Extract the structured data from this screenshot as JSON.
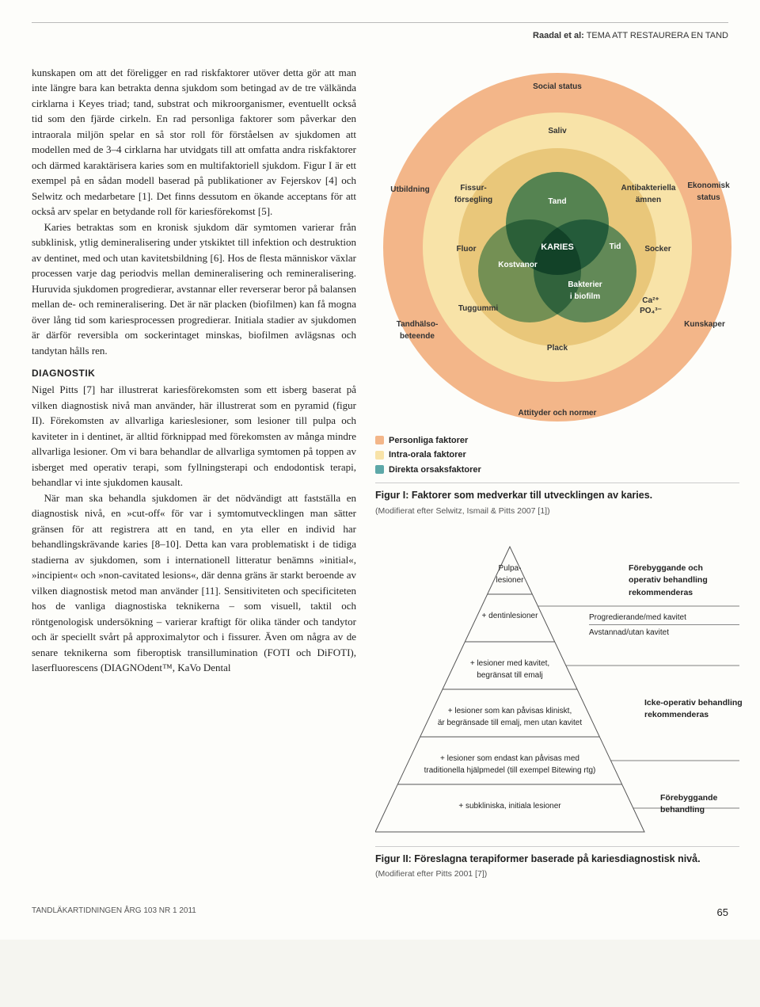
{
  "running_head": {
    "authors": "Raadal et al:",
    "title": "TEMA ATT RESTAURERA EN TAND"
  },
  "text": {
    "p1": "kunskapen om att det föreligger en rad riskfaktorer utöver detta gör att man inte längre bara kan betrakta denna sjukdom som betingad av de tre välkända cirklarna i Keyes triad; tand, substrat och mikroorganismer, eventuellt också tid som den fjärde cirkeln. En rad personliga faktorer som påverkar den intraorala miljön spelar en så stor roll för förståelsen av sjukdomen att modellen med de 3–4 cirklarna har utvidgats till att omfatta andra riskfaktorer och därmed karaktärisera karies som en multifaktoriell sjukdom. Figur I är ett exempel på en sådan modell baserad på publikationer av Fejerskov [4] och Selwitz och medarbetare [1]. Det finns dessutom en ökande acceptans för att också arv spelar en betydande roll för kariesförekomst [5].",
    "p2": "Karies betraktas som en kronisk sjukdom där symtomen varierar från subklinisk, ytlig demineralisering under ytskiktet till infektion och destruktion av dentinet, med och utan kavitetsbildning [6]. Hos de flesta människor växlar processen varje dag periodvis mellan demineralisering och remineralisering. Huruvida sjukdomen progredierar, avstannar eller reverserar beror på balansen mellan de- och remineralisering. Det är när placken (biofilmen) kan få mogna över lång tid som kariesprocessen progredierar. Initiala stadier av sjukdomen är därför reversibla om sockerintaget minskas, biofilmen avlägsnas och tandytan hålls ren.",
    "h1": "DIAGNOSTIK",
    "p3": "Nigel Pitts [7] har illustrerat kariesförekomsten som ett isberg baserat på vilken diagnostisk nivå man använder, här illustrerat som en pyramid (figur II). Förekomsten av allvarliga karieslesioner, som lesioner till pulpa och kaviteter in i dentinet, är alltid förknippad med förekomsten av många mindre allvarliga lesioner. Om vi bara behandlar de allvarliga symtomen på toppen av isberget med operativ terapi, som fyllningsterapi och endodontisk terapi, behandlar vi inte sjukdomen kausalt.",
    "p4": "När man ska behandla sjukdomen är det nödvändigt att fastställa en diagnostisk nivå, en »cut-off« för var i symtomutvecklingen man sätter gränsen för att registrera att en tand, en yta eller en individ har behandlingskrävande karies [8–10]. Detta kan vara problematiskt i de tidiga stadierna av sjukdomen, som i internationell litteratur benämns »initial«, »incipient« och »non-cavitated lesions«, där denna gräns är starkt beroende av vilken diagnostisk metod man använder [11]. Sensitiviteten och specificiteten hos de vanliga diagnostiska teknikerna – som visuell, taktil och röntgenologisk undersökning – varierar kraftigt för olika tänder och tandytor och är speciellt svårt på approximalytor och i fissurer. Även om några av de senare teknikerna som fiberoptisk transillumination (FOTI och DiFOTI), laserfluorescens (DIAGNOdent™, KaVo Dental"
  },
  "fig1": {
    "colors": {
      "outer": "#f3b689",
      "mid": "#f8e3a8",
      "inner": "#e9c77a",
      "venn1": "#5da8a8",
      "venn2": "#7fb8b0",
      "venn3": "#6bb0b5",
      "center": "#2b6e78"
    },
    "outer_labels": {
      "top": "Social status",
      "left": "Utbildning",
      "right": "Ekonomisk status",
      "bl": "Tandhälso-\nbeteende",
      "br": "Kunskaper",
      "bottom": "Attityder och normer"
    },
    "mid_labels": {
      "top": "Saliv",
      "l1": "Fissur-\nförsegling",
      "r1": "Antibakteriella\nämnen",
      "l2": "Fluor",
      "r2": "Socker",
      "l3": "Tuggummi",
      "r3_a": "Ca²⁺",
      "r3_b": "PO₄³⁻",
      "bottom": "Plack",
      "tid": "Tid",
      "kost": "Kostvanor"
    },
    "inner_labels": {
      "tand": "Tand",
      "bakterier": "Bakterier\ni biofilm",
      "karies": "KARIES"
    },
    "caption": "Figur I: Faktorer som medverkar till utvecklingen av karies.",
    "subcaption": "(Modifierat efter Selwitz, Ismail & Pitts 2007 [1])"
  },
  "legend": {
    "items": [
      {
        "color": "#f3b689",
        "label": "Personliga faktorer"
      },
      {
        "color": "#f8e3a8",
        "label": "Intra-orala faktorer"
      },
      {
        "color": "#5da8a8",
        "label": "Direkta orsaksfaktorer"
      }
    ]
  },
  "fig2": {
    "levels": [
      "Pulpa-\nlesioner",
      "+ dentinlesioner",
      "+ lesioner med kavitet,\nbegränsat till emalj",
      "+ lesioner som kan påvisas kliniskt,\när begränsade till emalj, men utan kavitet",
      "+ lesioner som endast kan påvisas med\ntraditionella hjälpmedel (till exempel Bitewing rtg)",
      "+ subkliniska, initiala lesioner"
    ],
    "side_top": "Förebyggande och\noperativ behandling\nrekommenderas",
    "side_top_sub1": "Progredierande/med kavitet",
    "side_top_sub2": "Avstannad/utan kavitet",
    "side_mid": "Icke-operativ behandling\nrekommenderas",
    "side_bot": "Förebyggande\nbehandling",
    "caption": "Figur II: Föreslagna terapiformer baserade på kariesdiagnostisk nivå.",
    "subcaption": "(Modifierat efter Pitts 2001 [7])",
    "stroke": "#555"
  },
  "footer": {
    "journal": "TANDLÄKARTIDNINGEN ÅRG 103 NR 1 2011",
    "page": "65"
  }
}
